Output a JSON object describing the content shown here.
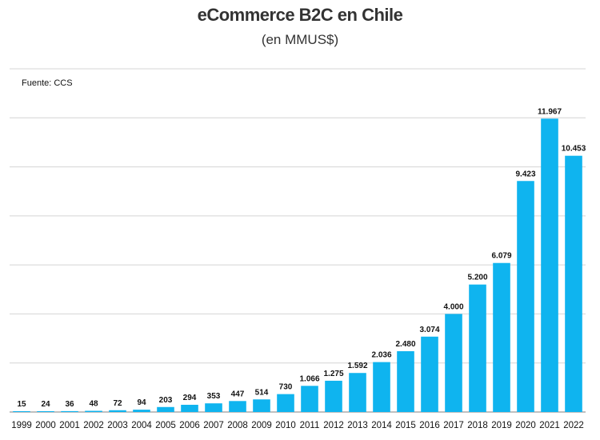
{
  "chart_data": {
    "type": "bar",
    "title": "eCommerce B2C en Chile",
    "subtitle": "(en MMUS$)",
    "source": "Fuente: CCS",
    "categories": [
      "1999",
      "2000",
      "2001",
      "2002",
      "2003",
      "2004",
      "2005",
      "2006",
      "2007",
      "2008",
      "2009",
      "2010",
      "2011",
      "2012",
      "2013",
      "2014",
      "2015",
      "2016",
      "2017",
      "2018",
      "2019",
      "2020",
      "2021",
      "2022"
    ],
    "values": [
      15,
      24,
      36,
      48,
      72,
      94,
      203,
      294,
      353,
      447,
      514,
      730,
      1066,
      1275,
      1592,
      2036,
      2480,
      3074,
      4000,
      5200,
      6079,
      9423,
      11967,
      10453
    ],
    "value_labels": [
      "15",
      "24",
      "36",
      "48",
      "72",
      "94",
      "203",
      "294",
      "353",
      "447",
      "514",
      "730",
      "1.066",
      "1.275",
      "1.592",
      "2.036",
      "2.480",
      "3.074",
      "4.000",
      "5.200",
      "6.079",
      "9.423",
      "11.967",
      "10.453"
    ],
    "ylim": [
      0,
      14000
    ],
    "grid": true,
    "bar_color": "#0fb4ef"
  }
}
